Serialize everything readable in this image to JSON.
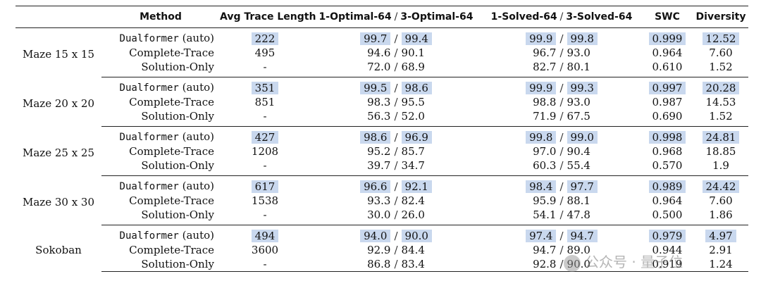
{
  "headers": {
    "task": "",
    "method": "Method",
    "trace_len": "Avg Trace Length",
    "opt1": "1-Optimal-64",
    "opt3": "3-Optimal-64",
    "sol1": "1-Solved-64",
    "sol3": "3-Solved-64",
    "swc": "SWC",
    "div": "Diversity",
    "slash": "/"
  },
  "groups": [
    {
      "task": "Maze 15 x 15",
      "rows": [
        {
          "method_a": "Dualformer",
          "method_b": "(auto)",
          "len": "222",
          "o1": "99.7",
          "o3": "99.4",
          "s1": "99.9",
          "s3": "99.8",
          "swc": "0.999",
          "div": "12.52"
        },
        {
          "method": "Complete-Trace",
          "len": "495",
          "o1": "94.6",
          "o3": "90.1",
          "s1": "96.7",
          "s3": "93.0",
          "swc": "0.964",
          "div": "7.60"
        },
        {
          "method": "Solution-Only",
          "len": "-",
          "o1": "72.0",
          "o3": "68.9",
          "s1": "82.7",
          "s3": "80.1",
          "swc": "0.610",
          "div": "1.52"
        }
      ]
    },
    {
      "task": "Maze 20 x 20",
      "rows": [
        {
          "method_a": "Dualformer",
          "method_b": "(auto)",
          "len": "351",
          "o1": "99.5",
          "o3": "98.6",
          "s1": "99.9",
          "s3": "99.3",
          "swc": "0.997",
          "div": "20.28"
        },
        {
          "method": "Complete-Trace",
          "len": "851",
          "o1": "98.3",
          "o3": "95.5",
          "s1": "98.8",
          "s3": "93.0",
          "swc": "0.987",
          "div": "14.53"
        },
        {
          "method": "Solution-Only",
          "len": "-",
          "o1": "56.3",
          "o3": "52.0",
          "s1": "71.9",
          "s3": "67.5",
          "swc": "0.690",
          "div": "1.52"
        }
      ]
    },
    {
      "task": "Maze 25 x 25",
      "rows": [
        {
          "method_a": "Dualformer",
          "method_b": "(auto)",
          "len": "427",
          "o1": "98.6",
          "o3": "96.9",
          "s1": "99.8",
          "s3": "99.0",
          "swc": "0.998",
          "div": "24.81"
        },
        {
          "method": "Complete-Trace",
          "len": "1208",
          "o1": "95.2",
          "o3": "85.7",
          "s1": "97.0",
          "s3": "90.4",
          "swc": "0.968",
          "div": "18.85"
        },
        {
          "method": "Solution-Only",
          "len": "-",
          "o1": "39.7",
          "o3": "34.7",
          "s1": "60.3",
          "s3": "55.4",
          "swc": "0.570",
          "div": "1.9"
        }
      ]
    },
    {
      "task": "Maze 30 x 30",
      "rows": [
        {
          "method_a": "Dualformer",
          "method_b": "(auto)",
          "len": "617",
          "o1": "96.6",
          "o3": "92.1",
          "s1": "98.4",
          "s3": "97.7",
          "swc": "0.989",
          "div": "24.42"
        },
        {
          "method": "Complete-Trace",
          "len": "1538",
          "o1": "93.3",
          "o3": "82.4",
          "s1": "95.9",
          "s3": "88.1",
          "swc": "0.964",
          "div": "7.60"
        },
        {
          "method": "Solution-Only",
          "len": "-",
          "o1": "30.0",
          "o3": "26.0",
          "s1": "54.1",
          "s3": "47.8",
          "swc": "0.500",
          "div": "1.86"
        }
      ]
    },
    {
      "task": "Sokoban",
      "rows": [
        {
          "method_a": "Dualformer",
          "method_b": "(auto)",
          "len": "494",
          "o1": "94.0",
          "o3": "90.0",
          "s1": "97.4",
          "s3": "94.7",
          "swc": "0.979",
          "div": "4.97"
        },
        {
          "method": "Complete-Trace",
          "len": "3600",
          "o1": "92.9",
          "o3": "84.4",
          "s1": "94.7",
          "s3": "89.0",
          "swc": "0.944",
          "div": "2.91"
        },
        {
          "method": "Solution-Only",
          "len": "-",
          "o1": "86.8",
          "o3": "83.4",
          "s1": "92.8",
          "s3": "90.0",
          "swc": "0.919",
          "div": "1.24"
        }
      ]
    }
  ],
  "watermark": {
    "text": "公众号 · 量子位",
    "icon": "wechat-icon"
  },
  "colors": {
    "highlight": "#c9d8ee",
    "rule": "#222222"
  }
}
